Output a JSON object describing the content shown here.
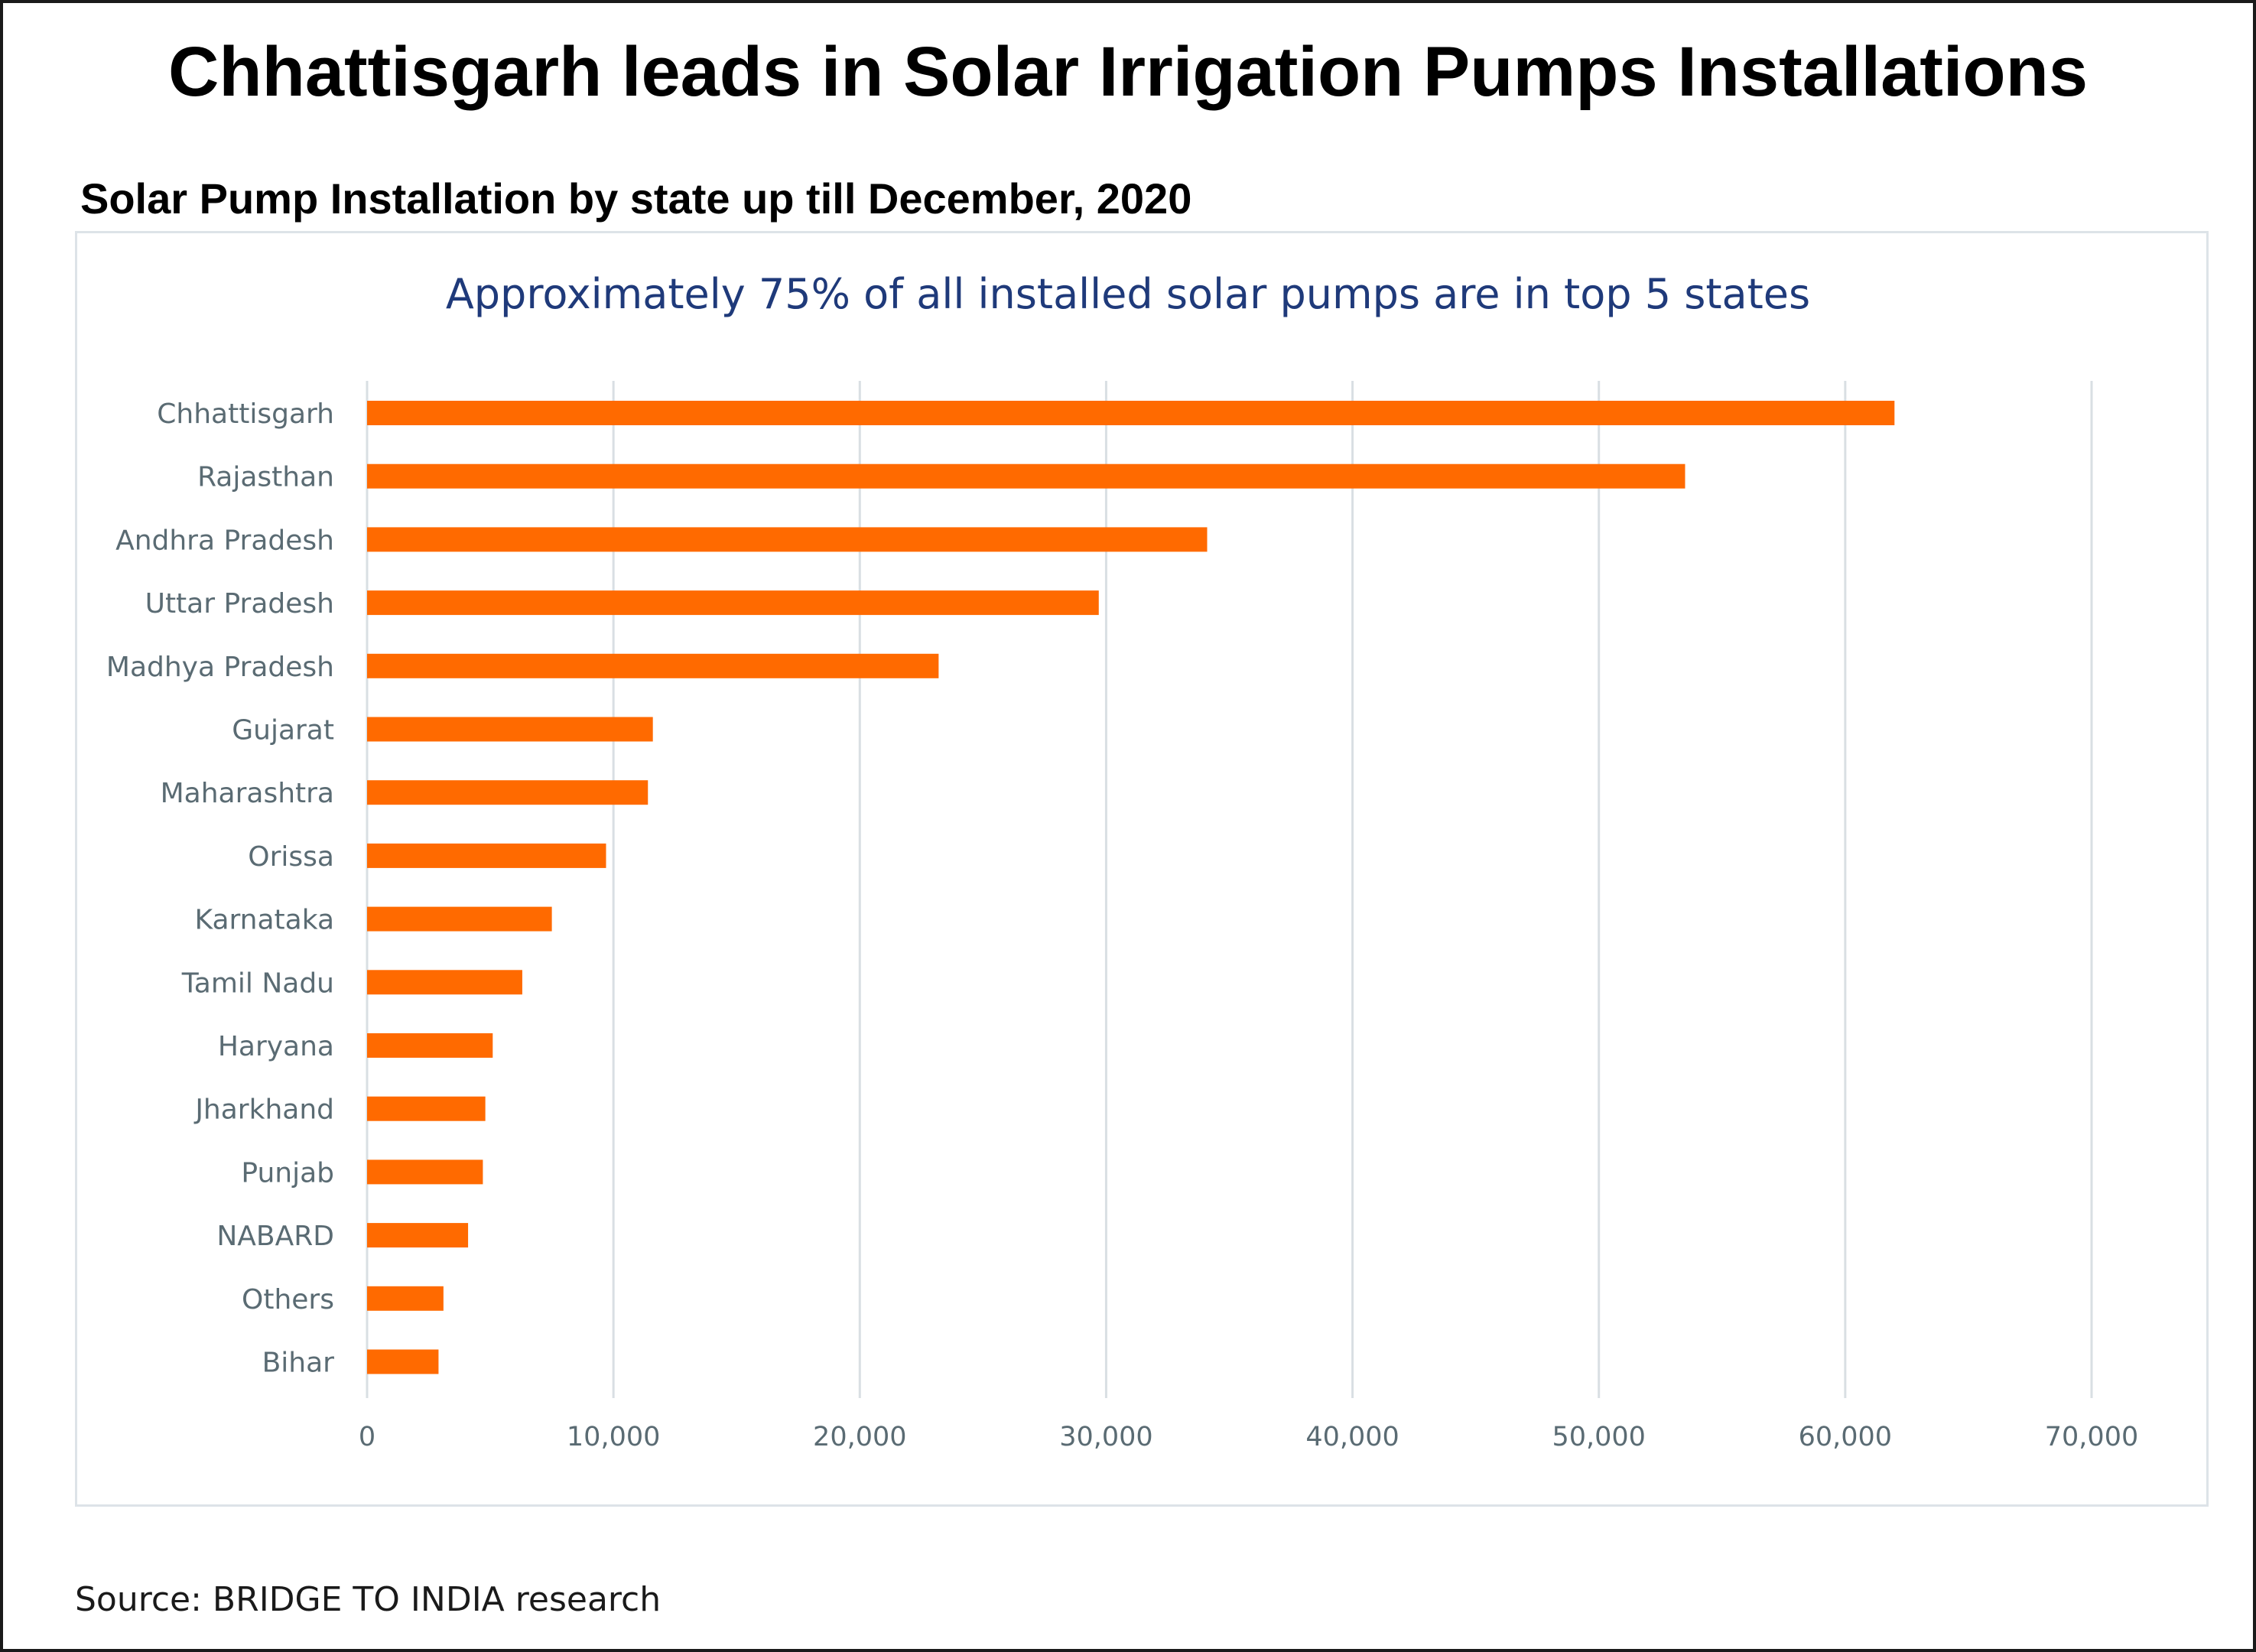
{
  "header": {
    "title": "Chhattisgarh leads in Solar Irrigation Pumps Installations",
    "subtitle": "Solar Pump Installation by state up till December, 2020"
  },
  "footer": {
    "source": "Source: BRIDGE TO INDIA research"
  },
  "colors": {
    "bar": "#ff6a00",
    "grid": "#d9dfe3",
    "axis_text": "#5a6b73",
    "chart_title": "#1f3a7a"
  },
  "chart_data": {
    "type": "bar",
    "orientation": "horizontal",
    "title": "Approximately 75% of all installed solar pumps are in top 5 states",
    "xlabel": "",
    "ylabel": "",
    "xlim": [
      0,
      70000
    ],
    "x_ticks": [
      0,
      10000,
      20000,
      30000,
      40000,
      50000,
      60000,
      70000
    ],
    "x_tick_labels": [
      "0",
      "10,000",
      "20,000",
      "30,000",
      "40,000",
      "50,000",
      "60,000",
      "70,000"
    ],
    "grid": "vertical",
    "legend": "none",
    "categories": [
      "Chhattisgarh",
      "Rajasthan",
      "Andhra Pradesh",
      "Uttar Pradesh",
      "Madhya Pradesh",
      "Gujarat",
      "Maharashtra",
      "Orissa",
      "Karnataka",
      "Tamil Nadu",
      "Haryana",
      "Jharkhand",
      "Punjab",
      "NABARD",
      "Others",
      "Bihar"
    ],
    "values": [
      62000,
      53500,
      34100,
      29700,
      23200,
      11600,
      11400,
      9700,
      7500,
      6300,
      5100,
      4800,
      4700,
      4100,
      3100,
      2900
    ]
  }
}
